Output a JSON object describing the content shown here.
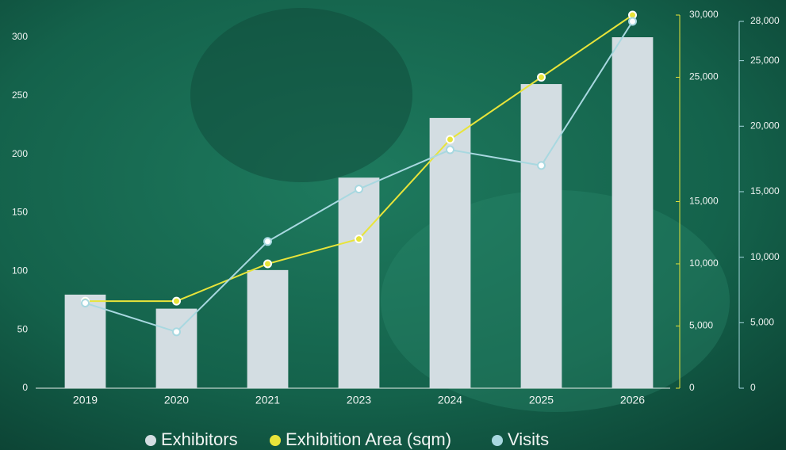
{
  "chart_data": {
    "type": "bar",
    "categories": [
      "2019",
      "2020",
      "2021",
      "2023",
      "2024",
      "2025",
      "2026"
    ],
    "series": [
      {
        "name": "Exhibitors",
        "type": "bar",
        "color": "#d3dde2",
        "values": [
          80,
          68,
          101,
          180,
          231,
          260,
          300
        ]
      },
      {
        "name": "Exhibition Area (sqm)",
        "type": "line",
        "axis": "y2",
        "color": "#e8e43a",
        "values": [
          7000,
          7000,
          10000,
          12000,
          20000,
          25000,
          30000
        ]
      },
      {
        "name": "Visits",
        "type": "line",
        "axis": "y3",
        "color": "#a8d8e0",
        "values": [
          6500,
          4300,
          11200,
          15200,
          18200,
          17000,
          28000
        ]
      }
    ],
    "ylim": [
      0,
      300
    ],
    "yticks": [
      0,
      50,
      100,
      150,
      200,
      250,
      300
    ],
    "y2lim": [
      0,
      30000
    ],
    "y2ticks": [
      0,
      {
        "value": 5000,
        "label": "5,000"
      },
      {
        "value": 10000,
        "label": "10,000"
      },
      {
        "value": 15000,
        "label": "15,000"
      },
      {
        "value": 25000,
        "label": "25,000"
      },
      {
        "value": 30000,
        "label": "30,000"
      }
    ],
    "y3lim": [
      0,
      28000
    ],
    "y3ticks": [
      0,
      {
        "value": 5000,
        "label": "5,000"
      },
      {
        "value": 10000,
        "label": "10,000"
      },
      {
        "value": 15000,
        "label": "15,000"
      },
      {
        "value": 20000,
        "label": "20,000"
      },
      {
        "value": 25000,
        "label": "25,000"
      },
      {
        "value": 28000,
        "label": "28,000"
      }
    ],
    "legend": "bottom"
  }
}
